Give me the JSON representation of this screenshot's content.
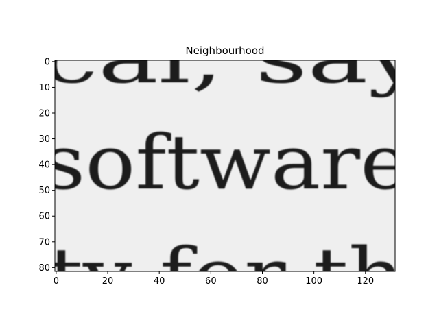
{
  "chart_data": {
    "type": "heatmap",
    "title": "Neighbourhood",
    "xlabel": "",
    "ylabel": "",
    "xlim": [
      -0.5,
      131.5
    ],
    "ylim": [
      81.5,
      -0.5
    ],
    "x_ticks": [
      "0",
      "20",
      "40",
      "60",
      "80",
      "100",
      "120"
    ],
    "y_ticks": [
      "0",
      "10",
      "20",
      "30",
      "40",
      "50",
      "60",
      "70",
      "80"
    ],
    "colormap": "gray",
    "grid": false,
    "image_text_lines": [
      "cal, say",
      "software",
      "ty for thi"
    ]
  }
}
